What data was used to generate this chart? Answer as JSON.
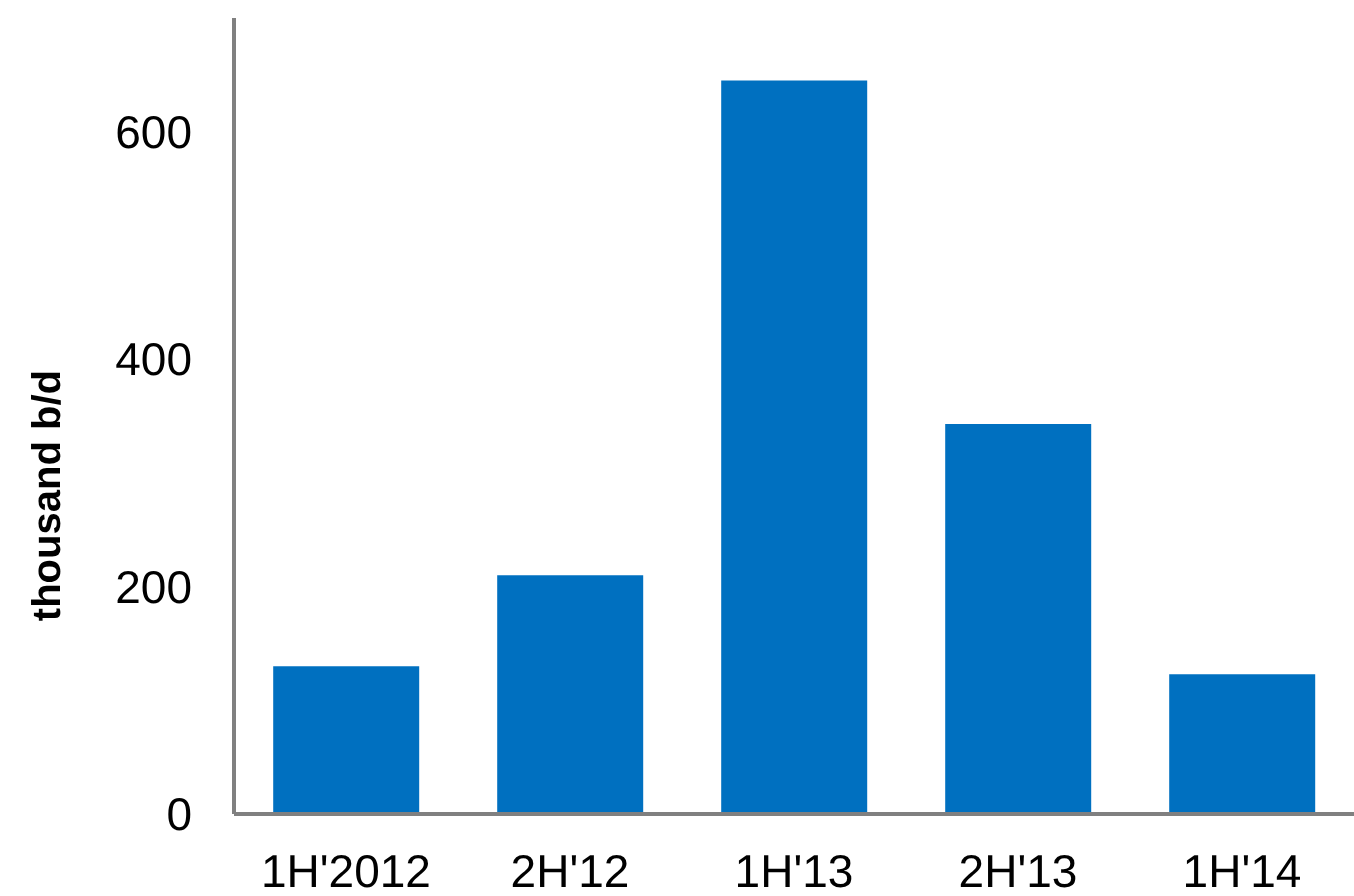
{
  "chart_data": {
    "type": "bar",
    "ylabel": "thousand b/d",
    "categories": [
      "1H'2012",
      "2H'12",
      "1H'13",
      "2H'13",
      "1H'14"
    ],
    "values": [
      130,
      210,
      645,
      343,
      123
    ],
    "color": "#0070c0",
    "ylim": [
      0,
      700
    ],
    "yticks": [
      0,
      200,
      400,
      600
    ]
  }
}
